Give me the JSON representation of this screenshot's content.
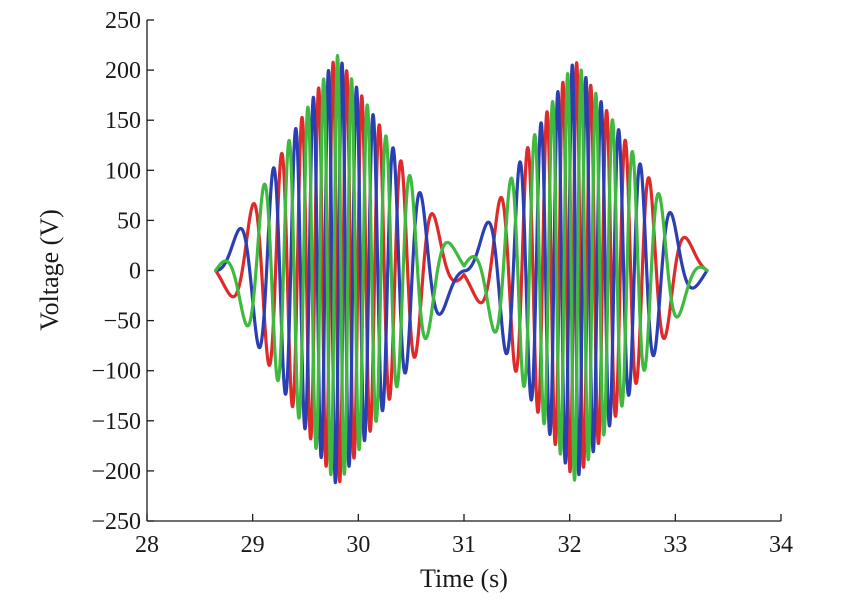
{
  "chart_data": {
    "type": "line",
    "title": "",
    "xlabel": "Time (s)",
    "ylabel": "Voltage (V)",
    "xlim": [
      28,
      34
    ],
    "ylim": [
      -250,
      250
    ],
    "xticks": [
      28,
      29,
      30,
      31,
      32,
      33,
      34
    ],
    "yticks": [
      250,
      200,
      150,
      100,
      50,
      0,
      -50,
      -100,
      -150,
      -200,
      -250
    ],
    "xtick_labels": [
      "28",
      "29",
      "30",
      "31",
      "32",
      "33",
      "34"
    ],
    "ytick_labels": [
      "250",
      "200",
      "150",
      "100",
      "50",
      "0",
      "−50",
      "−100",
      "−150",
      "−200",
      "−250"
    ],
    "grid": false,
    "legend": "none",
    "x_range": [
      28.65,
      33.3
    ],
    "envelope": {
      "description_values": "peak amplitude of each phase",
      "t": [
        28.65,
        29.8,
        31.0,
        32.05,
        33.3
      ],
      "amplitude": [
        0,
        215,
        5,
        210,
        0
      ]
    },
    "phase_frequency": {
      "t": [
        28.65,
        29.8,
        31.0,
        32.05,
        33.3
      ],
      "hz": [
        0.5,
        8.0,
        0.5,
        8.0,
        0.5
      ]
    },
    "series": [
      {
        "color": "#2b3fb3",
        "phase_deg": 0
      },
      {
        "color": "#e02a2a",
        "phase_deg": -120
      },
      {
        "color": "#3fba3f",
        "phase_deg": 120
      }
    ]
  }
}
